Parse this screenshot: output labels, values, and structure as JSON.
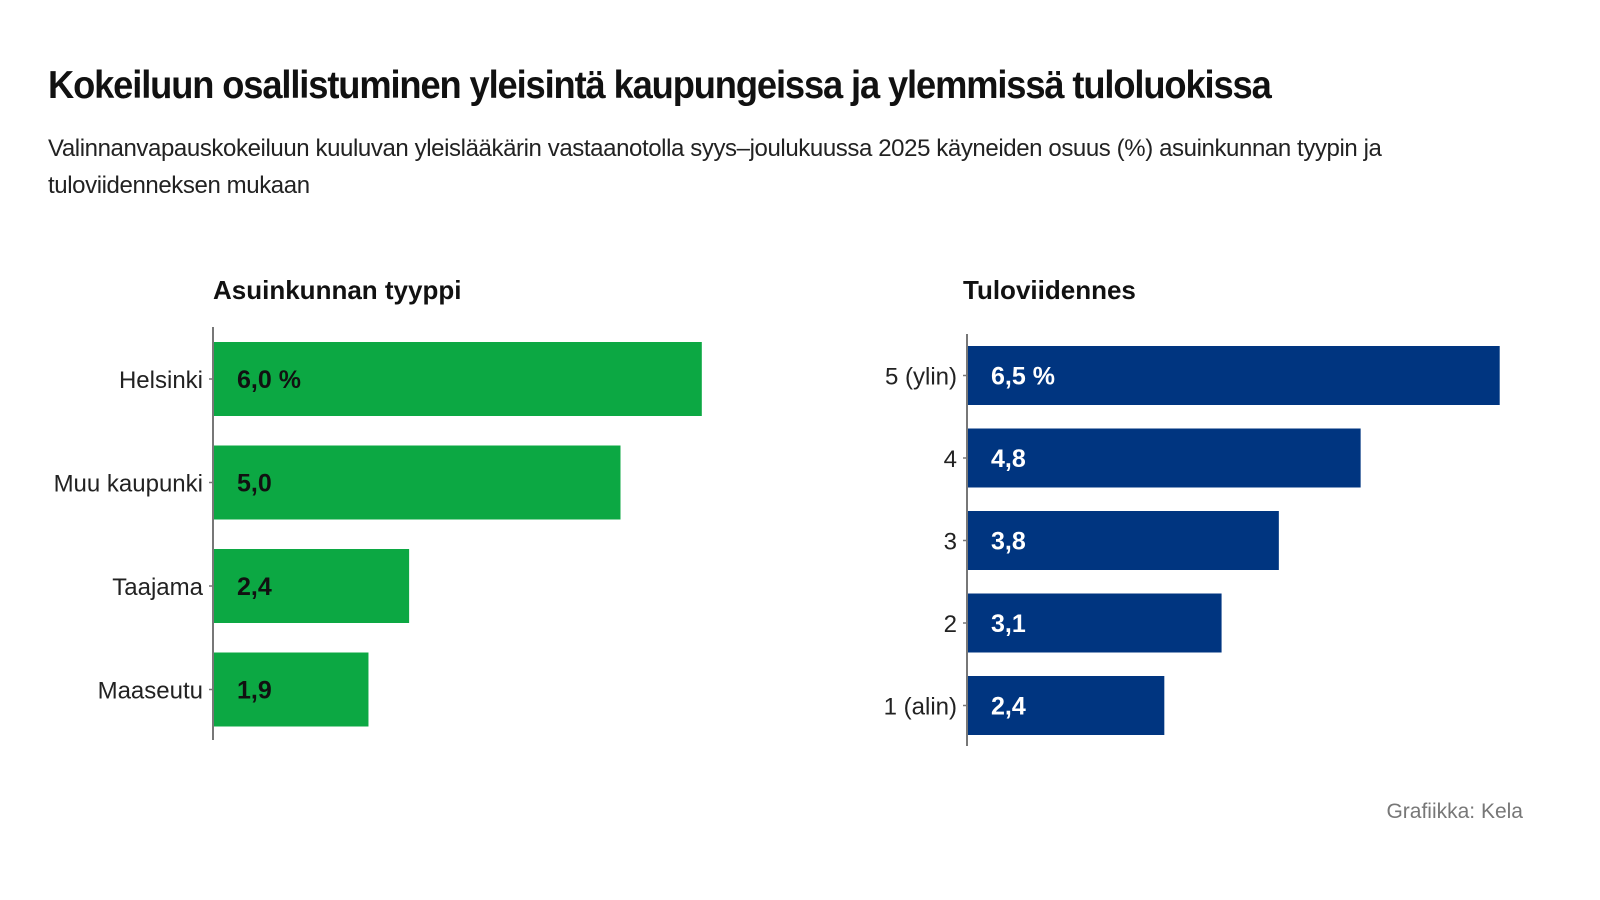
{
  "title": "Kokeiluun osallistuminen yleisintä kaupungeissa ja ylemmissä tuloluokissa",
  "subtitle": "Valinnanvapauskokeiluun kuuluvan yleislääkärin vastaanotolla syys–joulukuussa 2025 käyneiden osuus (%) asuinkunnan tyypin ja tuloviidenneksen mukaan",
  "source": "Grafiikka: Kela",
  "chart_data": [
    {
      "type": "bar",
      "orientation": "horizontal",
      "title": "Asuinkunnan tyyppi",
      "categories": [
        "Helsinki",
        "Muu kaupunki",
        "Taajama",
        "Maaseutu"
      ],
      "values": [
        6.0,
        5.0,
        2.4,
        1.9
      ],
      "labels": [
        "6,0 %",
        "5,0",
        "2,4",
        "1,9"
      ],
      "color": "#0ca843",
      "label_color": "#111111",
      "unit": "%"
    },
    {
      "type": "bar",
      "orientation": "horizontal",
      "title": "Tuloviidennes",
      "categories": [
        "5 (ylin)",
        "4",
        "3",
        "2",
        "1 (alin)"
      ],
      "values": [
        6.5,
        4.8,
        3.8,
        3.1,
        2.4
      ],
      "labels": [
        "6,5 %",
        "4,8",
        "3,8",
        "3,1",
        "2,4"
      ],
      "color": "#003580",
      "label_color": "#ffffff",
      "unit": "%"
    }
  ]
}
